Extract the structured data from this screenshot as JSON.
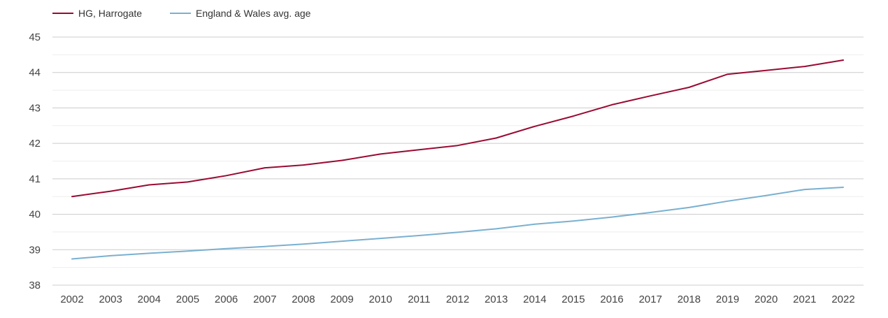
{
  "chart_data": {
    "type": "line",
    "title": "",
    "xlabel": "",
    "ylabel": "",
    "x": [
      2002,
      2003,
      2004,
      2005,
      2006,
      2007,
      2008,
      2009,
      2010,
      2011,
      2012,
      2013,
      2014,
      2015,
      2016,
      2017,
      2018,
      2019,
      2020,
      2021,
      2022
    ],
    "x_tick_labels": [
      "2002",
      "2003",
      "2004",
      "2005",
      "2006",
      "2007",
      "2008",
      "2009",
      "2010",
      "2011",
      "2012",
      "2013",
      "2014",
      "2015",
      "2016",
      "2017",
      "2018",
      "2019",
      "2020",
      "2021",
      "2022"
    ],
    "ylim": [
      38,
      45
    ],
    "y_ticks": [
      38,
      39,
      40,
      41,
      42,
      43,
      44,
      45
    ],
    "y_tick_labels": [
      "38",
      "39",
      "40",
      "41",
      "42",
      "43",
      "44",
      "45"
    ],
    "grid": true,
    "legend_position": "top-left",
    "series": [
      {
        "name": "HG, Harrogate",
        "color": "#9a0a32",
        "values": [
          40.5,
          40.65,
          40.83,
          40.91,
          41.09,
          41.31,
          41.39,
          41.52,
          41.7,
          41.82,
          41.94,
          42.15,
          42.48,
          42.77,
          43.09,
          43.34,
          43.58,
          43.95,
          44.06,
          44.17,
          44.35
        ]
      },
      {
        "name": "England & Wales avg. age",
        "color": "#7ab0d0",
        "values": [
          38.74,
          38.83,
          38.9,
          38.96,
          39.03,
          39.09,
          39.16,
          39.24,
          39.32,
          39.4,
          39.49,
          39.59,
          39.72,
          39.81,
          39.92,
          40.05,
          40.19,
          40.37,
          40.53,
          40.7,
          40.76
        ]
      }
    ]
  }
}
